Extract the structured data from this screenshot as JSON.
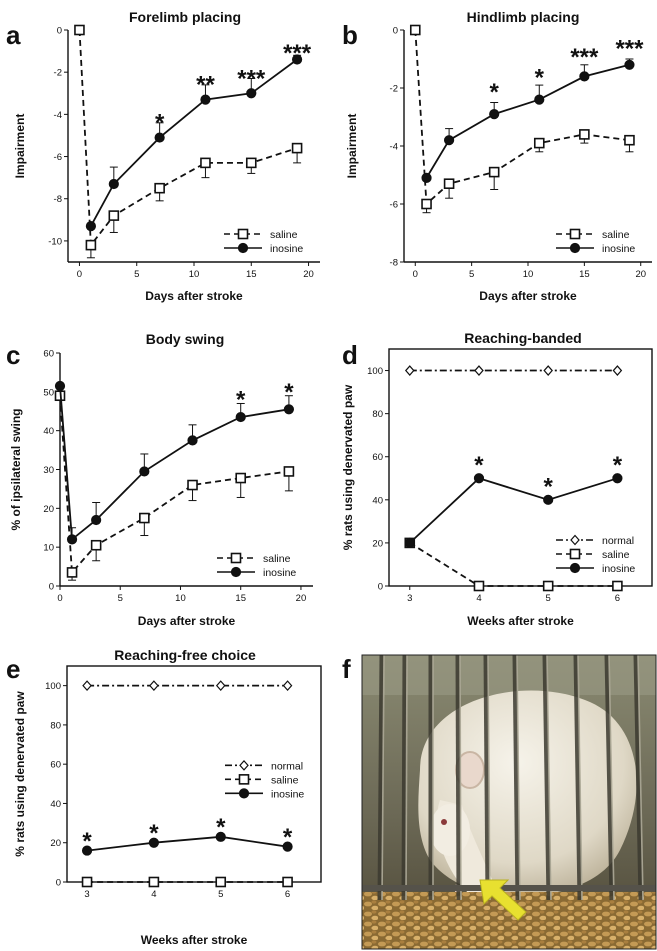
{
  "panels": [
    {
      "id": "a",
      "label": "a",
      "title": "Forelimb placing",
      "chart_data": {
        "type": "line",
        "title": "Forelimb placing",
        "xlabel": "Days after stroke",
        "ylabel": "Impairment",
        "xlim": [
          -1,
          21
        ],
        "ylim": [
          -11,
          0
        ],
        "xticks": [
          0,
          5,
          10,
          15,
          20
        ],
        "yticks": [
          0,
          -2,
          -4,
          -6,
          -8,
          -10
        ],
        "frame": "axes",
        "legend": "bottom-right",
        "series": [
          {
            "name": "saline",
            "style": "dashed",
            "marker": "open-square",
            "x": [
              0,
              1,
              3,
              7,
              11,
              15,
              19
            ],
            "y": [
              0,
              -10.2,
              -8.8,
              -7.5,
              -6.3,
              -6.3,
              -5.6
            ],
            "err": [
              0,
              0.6,
              0.8,
              0.6,
              0.7,
              0.5,
              0.7
            ]
          },
          {
            "name": "inosine",
            "style": "solid",
            "marker": "filled-circle",
            "x": [
              1,
              3,
              7,
              11,
              15,
              19
            ],
            "y": [
              -9.3,
              -7.3,
              -5.1,
              -3.3,
              -3.0,
              -1.4
            ],
            "err": [
              0,
              0.8,
              0.7,
              0.7,
              0.7,
              0.2
            ]
          }
        ],
        "annotations": [
          {
            "text": "*",
            "x": 7,
            "y": -4.2
          },
          {
            "text": "**",
            "x": 11,
            "y": -2.4
          },
          {
            "text": "***",
            "x": 15,
            "y": -2.1
          },
          {
            "text": "***",
            "x": 19,
            "y": -0.9
          }
        ]
      }
    },
    {
      "id": "b",
      "label": "b",
      "title": "Hindlimb placing",
      "chart_data": {
        "type": "line",
        "title": "Hindlimb placing",
        "xlabel": "Days after stroke",
        "ylabel": "Impairment",
        "xlim": [
          -1,
          21
        ],
        "ylim": [
          -8,
          0
        ],
        "xticks": [
          0,
          5,
          10,
          15,
          20
        ],
        "yticks": [
          0,
          -2,
          -4,
          -6,
          -8
        ],
        "frame": "axes",
        "legend": "bottom-right",
        "series": [
          {
            "name": "saline",
            "style": "dashed",
            "marker": "open-square",
            "x": [
              0,
              1,
              3,
              7,
              11,
              15,
              19
            ],
            "y": [
              0,
              -6.0,
              -5.3,
              -4.9,
              -3.9,
              -3.6,
              -3.8
            ],
            "err": [
              0,
              0.3,
              0.5,
              0.6,
              0.3,
              0.3,
              0.4
            ]
          },
          {
            "name": "inosine",
            "style": "solid",
            "marker": "filled-circle",
            "x": [
              1,
              3,
              7,
              11,
              15,
              19
            ],
            "y": [
              -5.1,
              -3.8,
              -2.9,
              -2.4,
              -1.6,
              -1.2
            ],
            "err": [
              0,
              0.4,
              0.4,
              0.5,
              0.4,
              0.2
            ]
          }
        ],
        "annotations": [
          {
            "text": "*",
            "x": 7,
            "y": -2.0
          },
          {
            "text": "*",
            "x": 11,
            "y": -1.5
          },
          {
            "text": "***",
            "x": 15,
            "y": -0.8
          },
          {
            "text": "***",
            "x": 19,
            "y": -0.5
          }
        ]
      }
    },
    {
      "id": "c",
      "label": "c",
      "title": "Body swing",
      "chart_data": {
        "type": "line",
        "title": "Body swing",
        "xlabel": "Days after stroke",
        "ylabel": "% of ipsilateral swing",
        "xlim": [
          0,
          21
        ],
        "ylim": [
          0,
          60
        ],
        "xticks": [
          0,
          5,
          10,
          15,
          20
        ],
        "yticks": [
          0,
          10,
          20,
          30,
          40,
          50,
          60
        ],
        "frame": "axes",
        "legend": "bottom-right",
        "series": [
          {
            "name": "saline",
            "style": "dashed",
            "marker": "open-square",
            "x": [
              0,
              1,
              3,
              7,
              11,
              15,
              19
            ],
            "y": [
              49,
              3.5,
              10.5,
              17.5,
              26,
              27.8,
              29.5
            ],
            "err": [
              0,
              2,
              4,
              4.5,
              4,
              5,
              5
            ]
          },
          {
            "name": "inosine",
            "style": "solid",
            "marker": "filled-circle",
            "x": [
              0,
              1,
              3,
              7,
              11,
              15,
              19
            ],
            "y": [
              51.5,
              12,
              17,
              29.5,
              37.5,
              43.5,
              45.5
            ],
            "err": [
              0,
              3,
              4.5,
              4.5,
              4,
              3.5,
              3.5
            ]
          }
        ],
        "annotations": [
          {
            "text": "*",
            "x": 15,
            "y": 49
          },
          {
            "text": "*",
            "x": 19,
            "y": 51
          }
        ]
      }
    },
    {
      "id": "d",
      "label": "d",
      "title": "Reaching-banded",
      "chart_data": {
        "type": "line",
        "title": "Reaching-banded",
        "xlabel": "Weeks after stroke",
        "ylabel": "% rats using denervated paw",
        "xlim": [
          2.7,
          6.5
        ],
        "ylim": [
          0,
          110
        ],
        "xticks": [
          3,
          4,
          5,
          6
        ],
        "yticks": [
          0,
          20,
          40,
          60,
          80,
          100
        ],
        "frame": "box",
        "legend": "bottom-right",
        "series": [
          {
            "name": "normal",
            "style": "dashdot",
            "marker": "open-diamond",
            "x": [
              3,
              4,
              5,
              6
            ],
            "y": [
              100,
              100,
              100,
              100
            ]
          },
          {
            "name": "saline",
            "style": "dashed",
            "marker": "open-square",
            "x": [
              3,
              4,
              5,
              6
            ],
            "y": [
              20,
              0,
              0,
              0
            ]
          },
          {
            "name": "inosine",
            "style": "solid",
            "marker": "filled-circle",
            "x": [
              3,
              4,
              5,
              6
            ],
            "y": [
              20,
              50,
              40,
              50
            ]
          }
        ],
        "annotations": [
          {
            "text": "*",
            "x": 4,
            "y": 58
          },
          {
            "text": "*",
            "x": 5,
            "y": 48
          },
          {
            "text": "*",
            "x": 6,
            "y": 58
          }
        ]
      }
    },
    {
      "id": "e",
      "label": "e",
      "title": "Reaching-free choice",
      "chart_data": {
        "type": "line",
        "title": "Reaching-free choice",
        "xlabel": "Weeks after stroke",
        "ylabel": "% rats using denervated paw",
        "xlim": [
          2.7,
          6.5
        ],
        "ylim": [
          0,
          110
        ],
        "xticks": [
          3,
          4,
          5,
          6
        ],
        "yticks": [
          0,
          20,
          40,
          60,
          80,
          100
        ],
        "frame": "box",
        "legend": "center-right",
        "series": [
          {
            "name": "normal",
            "style": "dashdot",
            "marker": "open-diamond",
            "x": [
              3,
              4,
              5,
              6
            ],
            "y": [
              100,
              100,
              100,
              100
            ]
          },
          {
            "name": "saline",
            "style": "dashed",
            "marker": "open-square",
            "x": [
              3,
              4,
              5,
              6
            ],
            "y": [
              0,
              0,
              0,
              0
            ]
          },
          {
            "name": "inosine",
            "style": "solid",
            "marker": "filled-circle",
            "x": [
              3,
              4,
              5,
              6
            ],
            "y": [
              16,
              20,
              23,
              18
            ]
          }
        ],
        "annotations": [
          {
            "text": "*",
            "x": 3,
            "y": 23
          },
          {
            "text": "*",
            "x": 4,
            "y": 27
          },
          {
            "text": "*",
            "x": 5,
            "y": 30
          },
          {
            "text": "*",
            "x": 6,
            "y": 25
          }
        ]
      }
    },
    {
      "id": "f",
      "label": "f",
      "photo": {
        "bars": "metal-cage-bars",
        "subject": "white-rat",
        "arrow_color": "#e8e030"
      }
    }
  ]
}
